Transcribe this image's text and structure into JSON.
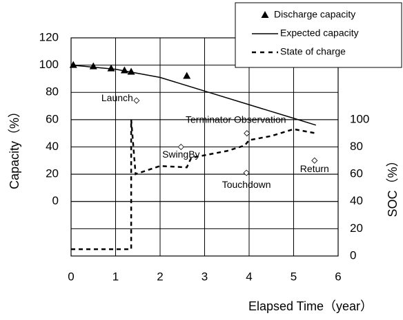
{
  "chart_data": {
    "type": "line",
    "x_label": "Elapsed Time（year）",
    "y_label": "Capacity（%）",
    "y2_label": "SOC（%）",
    "xlim": [
      0,
      6
    ],
    "xticks": [
      0,
      1,
      2,
      3,
      4,
      5,
      6
    ],
    "ylim": [
      -40,
      120
    ],
    "yticks": [
      0,
      20,
      40,
      60,
      80,
      100,
      120
    ],
    "y2lim": [
      0,
      160
    ],
    "y2ticks": [
      0,
      20,
      40,
      60,
      80,
      100
    ],
    "grid": true,
    "legend": "top-right",
    "series": [
      {
        "name": "Discharge capacity",
        "mode": "markers",
        "color": "#000000",
        "x": [
          0.05,
          0.5,
          0.9,
          1.2,
          1.35,
          2.6
        ],
        "values": [
          100,
          99,
          97.5,
          96,
          95,
          92
        ]
      },
      {
        "name": "Expected capacity",
        "mode": "solid",
        "color": "#000000",
        "x": [
          0,
          1,
          2,
          3,
          4,
          5,
          5.5
        ],
        "values": [
          100,
          97,
          91,
          81,
          71,
          61,
          56
        ]
      },
      {
        "name": "State of charge",
        "mode": "dashed",
        "color": "#000000",
        "axis": "y2",
        "x": [
          0,
          1.3,
          1.35,
          1.35,
          1.45,
          2,
          2.6,
          2.7,
          3.5,
          3.9,
          4.0,
          4.5,
          5,
          5.5
        ],
        "values": [
          5,
          5,
          5,
          100,
          60,
          66,
          65,
          72,
          77,
          81,
          85,
          88,
          93,
          90
        ]
      }
    ],
    "events": [
      {
        "name": "Launch",
        "x": 1.47,
        "y": 74
      },
      {
        "name": "SwingBy",
        "x": 2.47,
        "y": 40
      },
      {
        "name": "Terminator Observation",
        "x": 3.95,
        "y": 50
      },
      {
        "name": "Touchdown",
        "x": 3.94,
        "y": 21
      },
      {
        "name": "Return",
        "x": 5.47,
        "y": 30
      }
    ]
  }
}
